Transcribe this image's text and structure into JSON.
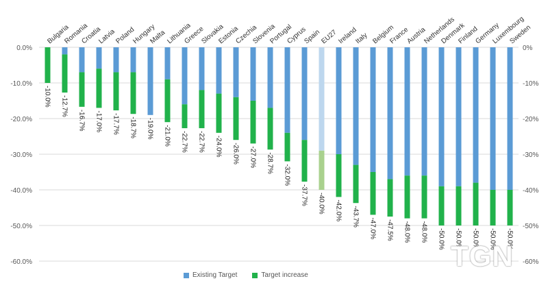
{
  "chart_data": {
    "type": "bar",
    "stacked": true,
    "categories": [
      "Bulgaria",
      "Romania",
      "Croatia",
      "Latvia",
      "Poland",
      "Hungary",
      "Malta",
      "Lithuania",
      "Greece",
      "Slovakia",
      "Estonia",
      "Czechia",
      "Slovenia",
      "Portugal",
      "Cyprus",
      "Spain",
      "EU27",
      "Ireland",
      "Italy",
      "Belgium",
      "France",
      "Austria",
      "Netherlands",
      "Denmark",
      "Finland",
      "Germany",
      "Luxembourg",
      "Sweden"
    ],
    "series": [
      {
        "name": "Existing Target",
        "color": "#5b9bd5",
        "values": [
          0,
          -2,
          -7,
          -6,
          -7,
          -7,
          -19,
          -9,
          -16,
          -12,
          -13,
          -14,
          -15,
          -17,
          -24,
          -26,
          -29,
          -30,
          -33,
          -35,
          -37,
          -36,
          -36,
          -39,
          -39,
          -38,
          -40,
          -40
        ]
      },
      {
        "name": "Target increase",
        "color": "#21b24b",
        "values": [
          -10,
          -10.7,
          -9.7,
          -11,
          -10.7,
          -11.7,
          0,
          -12,
          -6.7,
          -10.7,
          -11,
          -12,
          -12,
          -11.7,
          -8,
          -11.7,
          -11,
          -12,
          -10.7,
          -12,
          -10.5,
          -12,
          -12,
          -11,
          -11,
          -12,
          -10,
          -10
        ]
      }
    ],
    "total_labels": [
      "-10.0%",
      "-12.7%",
      "-16.7%",
      "-17.0%",
      "-17.7%",
      "-18.7%",
      "-19.0%",
      "-21.0%",
      "-22.7%",
      "-22.7%",
      "-24.0%",
      "-26.0%",
      "-27.0%",
      "-28.7%",
      "-32.0%",
      "-37.7%",
      "-40.0%",
      "-42.0%",
      "-43.7%",
      "-47.0%",
      "-47.5%",
      "-48.0%",
      "-48.0%",
      "-50.0%",
      "-50.0%",
      "-50.0%",
      "-50.0%",
      "-50.0%"
    ],
    "highlight_category": "EU27",
    "highlight_colors": {
      "Existing Target": "#bdd7ee",
      "Target increase": "#a9d18e"
    },
    "y_ticks": [
      0,
      -10,
      -20,
      -30,
      -40,
      -50,
      -60
    ],
    "y_tick_labels_left": [
      "0.0%",
      "-10.0%",
      "-20.0%",
      "-30.0%",
      "-40.0%",
      "-50.0%",
      "-60.0%"
    ],
    "y_tick_labels_right": [
      "0%",
      "-10%",
      "-20%",
      "-30%",
      "-40%",
      "-50%",
      "-60%"
    ],
    "ylim": [
      -60,
      0
    ],
    "grid": true,
    "legend": "bottom",
    "title": "",
    "xlabel": "",
    "ylabel": ""
  },
  "watermark": "TGN"
}
